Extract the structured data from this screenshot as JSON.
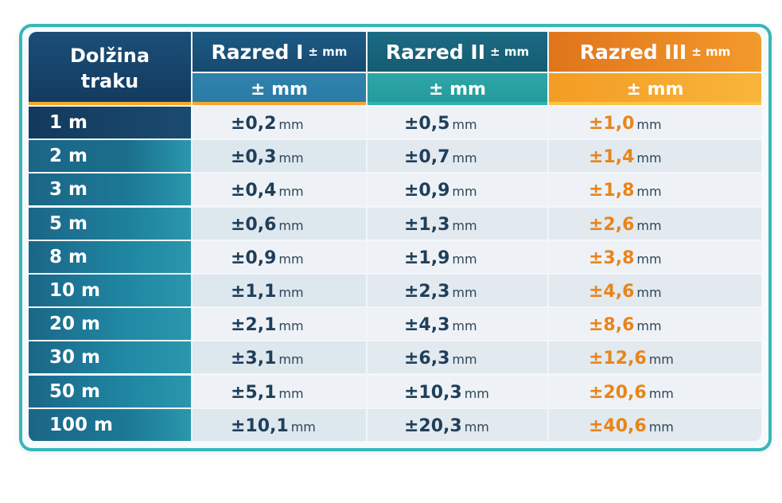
{
  "header": {
    "length_line1": "Dolžina",
    "length_line2": "traku",
    "class1": "Razred I",
    "class2": "Razred II",
    "class3": "Razred III",
    "class_unit": "± mm",
    "sub_unit": "± mm"
  },
  "rows": [
    {
      "length": "1 m",
      "c1": "±0,2",
      "c2": "±0,5",
      "c3": "±1,0"
    },
    {
      "length": "2 m",
      "c1": "±0,3",
      "c2": "±0,7",
      "c3": "±1,4"
    },
    {
      "length": "3 m",
      "c1": "±0,4",
      "c2": "±0,9",
      "c3": "±1,8"
    },
    {
      "length": "5 m",
      "c1": "±0,6",
      "c2": "±1,3",
      "c3": "±2,6"
    },
    {
      "length": "8 m",
      "c1": "±0,9",
      "c2": "±1,9",
      "c3": "±3,8"
    },
    {
      "length": "10 m",
      "c1": "±1,1",
      "c2": "±2,3",
      "c3": "±4,6"
    },
    {
      "length": "20 m",
      "c1": "±2,1",
      "c2": "±4,3",
      "c3": "±8,6"
    },
    {
      "length": "30 m",
      "c1": "±3,1",
      "c2": "±6,3",
      "c3": "±12,6"
    },
    {
      "length": "50 m",
      "c1": "±5,1",
      "c2": "±10,3",
      "c3": "±20,6"
    },
    {
      "length": "100 m",
      "c1": "±10,1",
      "c2": "±20,3",
      "c3": "±40,6"
    }
  ],
  "unit": "mm",
  "colors": {
    "accent_teal": "#36b7ba",
    "header_navy": "#133a5e",
    "class3_orange": "#f39a2c",
    "value_orange": "#e9841a"
  }
}
